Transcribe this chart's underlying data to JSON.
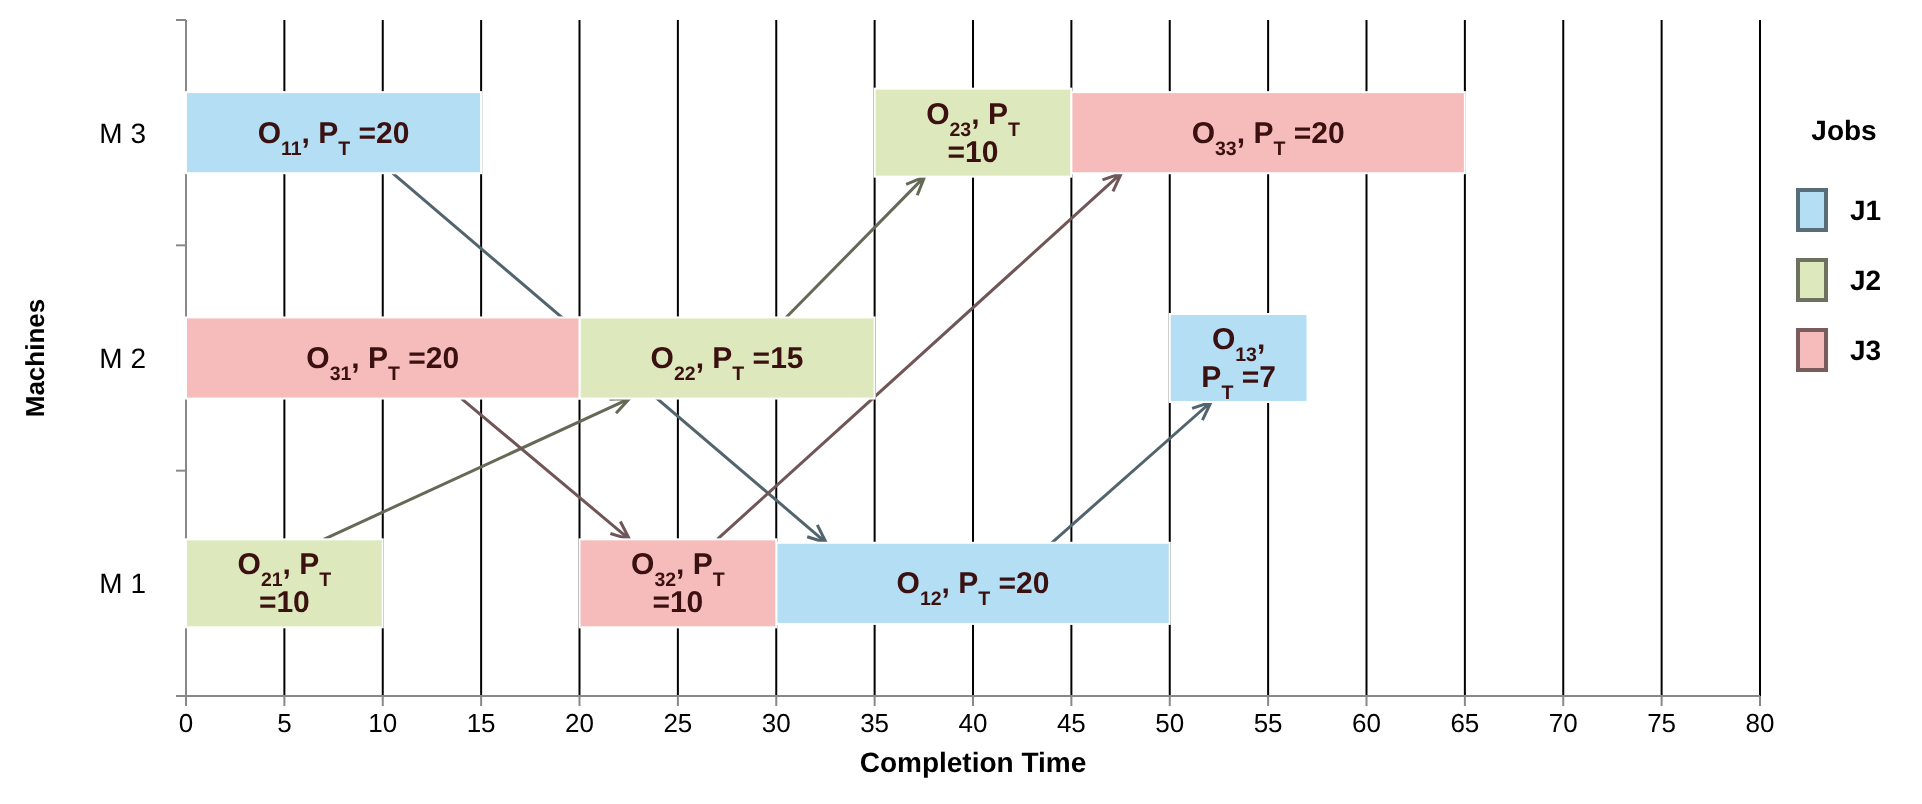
{
  "chart_data": {
    "type": "bar",
    "orientation": "horizontal",
    "xlabel": "Completion Time",
    "ylabel": "Machines",
    "legend_title": "Jobs",
    "categories": [
      "M 3",
      "M 2",
      "M 1"
    ],
    "series": [
      {
        "name": "J1",
        "color": "#b4def4",
        "base": [
          0,
          50,
          30
        ],
        "values": [
          15,
          7,
          20
        ],
        "value_labels": [
          "O$_{11}$, P$_{T}$ =20",
          "O$_{13}$, P$_{T}$ =7",
          "O$_{12}$, P$_{T}$ =20"
        ]
      },
      {
        "name": "J2",
        "color": "#dde9bd",
        "base": [
          35,
          20,
          0
        ],
        "values": [
          10,
          15,
          10
        ],
        "value_labels": [
          "O$_{23}$, P$_{T}$ =10",
          "O$_{22}$, P$_{T}$ =15",
          "O$_{21}$, P$_{T}$ =10"
        ]
      },
      {
        "name": "J3",
        "color": "#f6bcbc",
        "base": [
          45,
          0,
          20
        ],
        "values": [
          20,
          20,
          10
        ],
        "value_labels": [
          "O$_{33}$, P$_{T}$ =20",
          "O$_{31}$, P$_{T}$ =20",
          "O$_{32}$, P$_{T}$ =10"
        ]
      }
    ],
    "xlim": [
      0,
      80
    ],
    "xticks": [
      0,
      5,
      10,
      15,
      20,
      25,
      30,
      35,
      40,
      45,
      50,
      55,
      60,
      65,
      70,
      75,
      80
    ],
    "grid": "x",
    "legend": "right"
  }
}
